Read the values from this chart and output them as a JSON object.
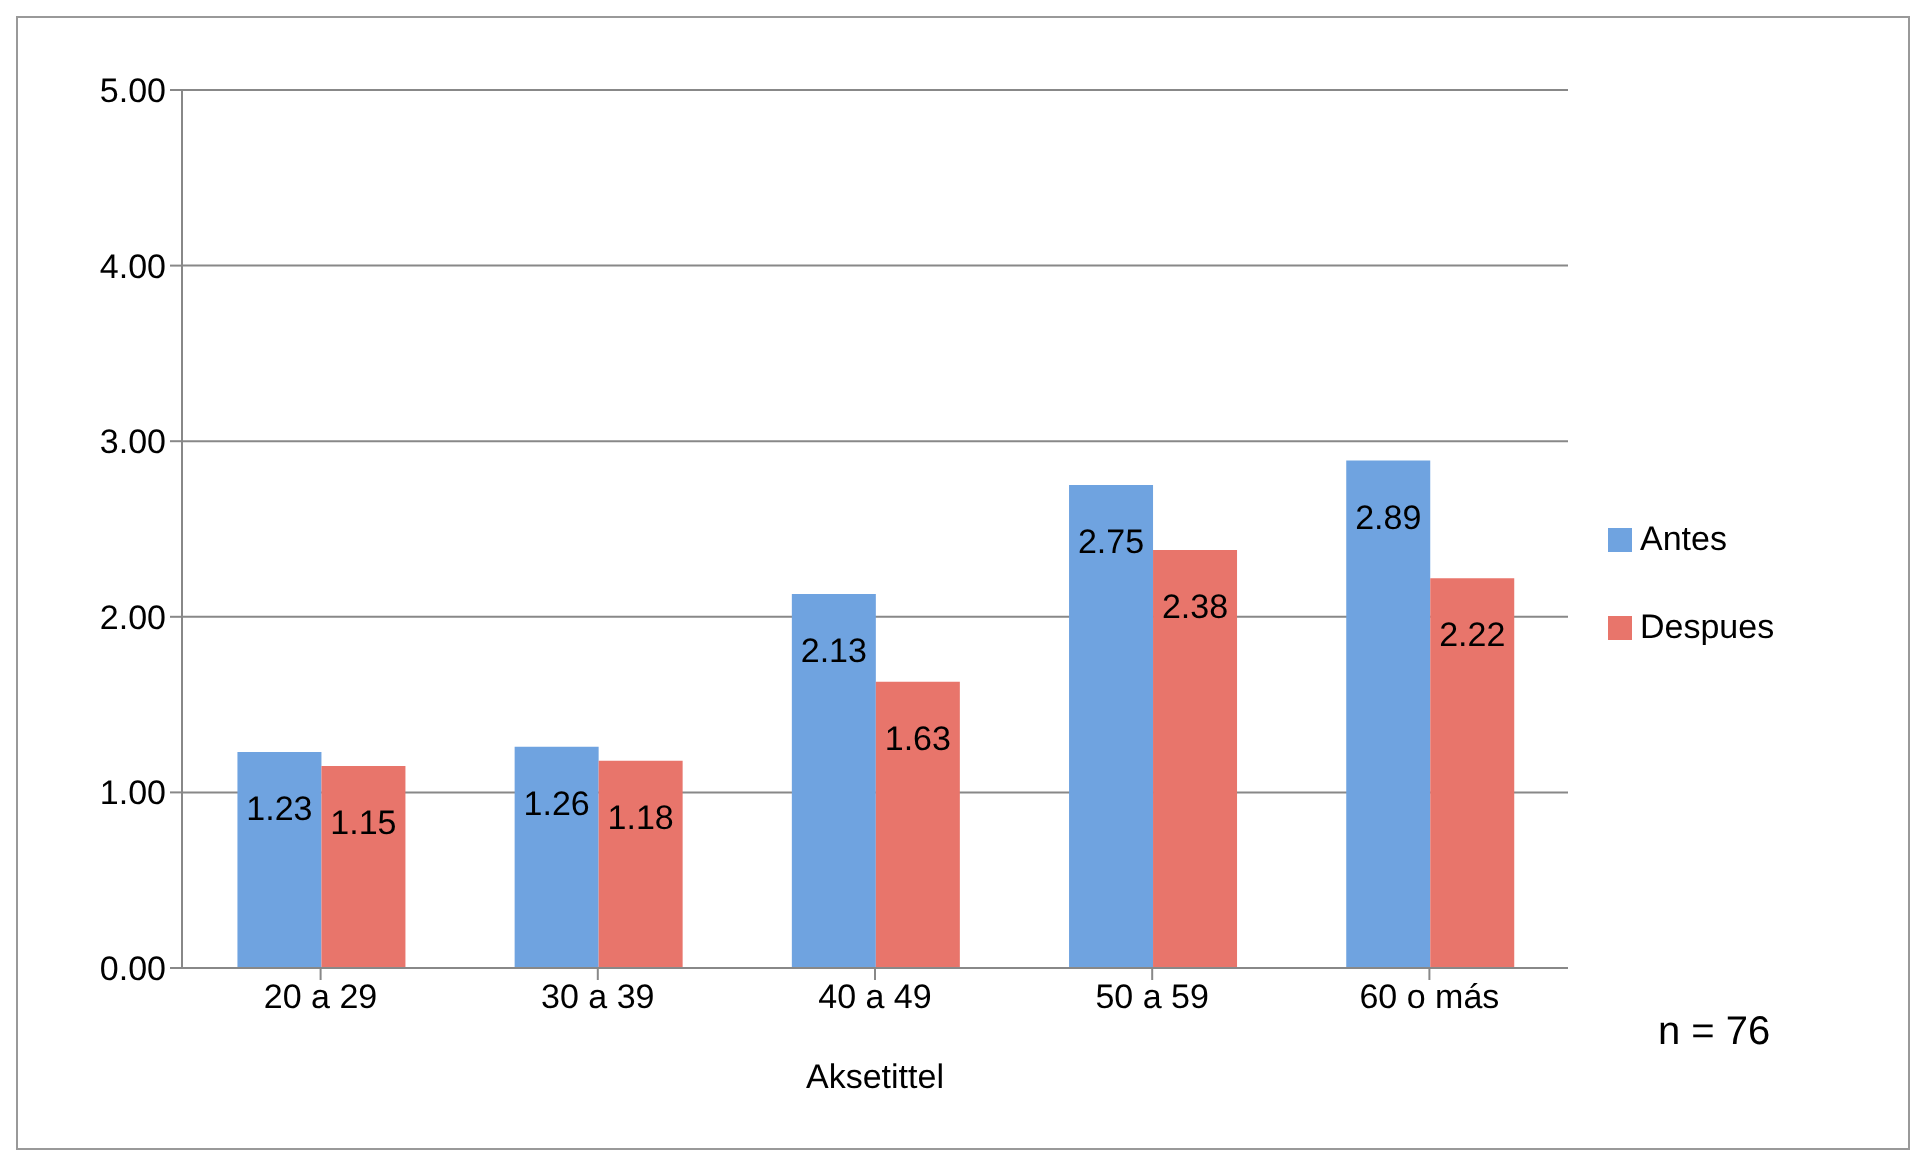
{
  "chart_data": {
    "type": "bar",
    "xlabel": "Aksetittel",
    "categories": [
      "20 a 29",
      "30 a 39",
      "40 a 49",
      "50 a 59",
      "60 o más"
    ],
    "series": [
      {
        "name": "Antes",
        "color": "#6fa3e0",
        "values": [
          1.23,
          1.26,
          2.13,
          2.75,
          2.89
        ]
      },
      {
        "name": "Despues",
        "color": "#e8756b",
        "values": [
          1.15,
          1.18,
          1.63,
          2.38,
          2.22
        ]
      }
    ],
    "ylim": [
      0,
      5
    ],
    "yticks": [
      {
        "value": 0,
        "label": "0.00"
      },
      {
        "value": 1,
        "label": "1.00"
      },
      {
        "value": 2,
        "label": "2.00"
      },
      {
        "value": 3,
        "label": "3.00"
      },
      {
        "value": 4,
        "label": "4.00"
      },
      {
        "value": 5,
        "label": "5.00"
      }
    ],
    "grid": "y",
    "legend": "right",
    "data_labels": true,
    "annotations": [
      "n = 76"
    ]
  }
}
